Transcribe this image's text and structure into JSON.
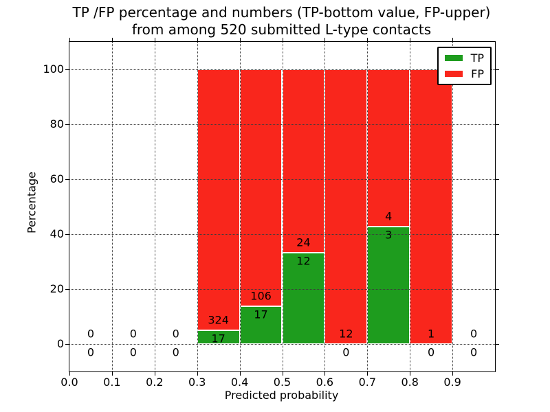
{
  "chart_data": {
    "type": "bar",
    "stacked": true,
    "title_line1": "TP /FP percentage and numbers (TP-bottom value, FP-upper)",
    "title_line2": "from among 520 submitted L-type contacts",
    "xlabel": "Predicted probability",
    "ylabel": "Percentage",
    "xlim": [
      0.0,
      1.0
    ],
    "ylim": [
      -10,
      110
    ],
    "grid": {
      "style": "dotted",
      "color": "#3c3c3c",
      "on": true
    },
    "series_colors": {
      "tp": "#1e9c1e",
      "fp": "#f9261c"
    },
    "xticks": [
      {
        "v": 0.0,
        "label": "0.0"
      },
      {
        "v": 0.1,
        "label": "0.1"
      },
      {
        "v": 0.2,
        "label": "0.2"
      },
      {
        "v": 0.3,
        "label": "0.3"
      },
      {
        "v": 0.4,
        "label": "0.4"
      },
      {
        "v": 0.5,
        "label": "0.5"
      },
      {
        "v": 0.6,
        "label": "0.6"
      },
      {
        "v": 0.7,
        "label": "0.7"
      },
      {
        "v": 0.8,
        "label": "0.8"
      },
      {
        "v": 0.9,
        "label": "0.9"
      }
    ],
    "yticks": [
      {
        "v": 0,
        "label": "0"
      },
      {
        "v": 20,
        "label": "20"
      },
      {
        "v": 40,
        "label": "40"
      },
      {
        "v": 60,
        "label": "60"
      },
      {
        "v": 80,
        "label": "80"
      },
      {
        "v": 100,
        "label": "100"
      }
    ],
    "legend": {
      "position": "upper-right",
      "entries": [
        {
          "label": "TP",
          "color": "#1e9c1e"
        },
        {
          "label": "FP",
          "color": "#f9261c"
        }
      ]
    },
    "bins": [
      {
        "x0": 0.0,
        "x1": 0.1,
        "tp": 0,
        "fp": 0
      },
      {
        "x0": 0.1,
        "x1": 0.2,
        "tp": 0,
        "fp": 0
      },
      {
        "x0": 0.2,
        "x1": 0.3,
        "tp": 0,
        "fp": 0
      },
      {
        "x0": 0.3,
        "x1": 0.4,
        "tp": 17,
        "fp": 324
      },
      {
        "x0": 0.4,
        "x1": 0.5,
        "tp": 17,
        "fp": 106
      },
      {
        "x0": 0.5,
        "x1": 0.6,
        "tp": 12,
        "fp": 24
      },
      {
        "x0": 0.6,
        "x1": 0.7,
        "tp": 0,
        "fp": 12
      },
      {
        "x0": 0.7,
        "x1": 0.8,
        "tp": 3,
        "fp": 4
      },
      {
        "x0": 0.8,
        "x1": 0.9,
        "tp": 0,
        "fp": 1
      },
      {
        "x0": 0.9,
        "x1": 1.0,
        "tp": 0,
        "fp": 0
      }
    ]
  }
}
